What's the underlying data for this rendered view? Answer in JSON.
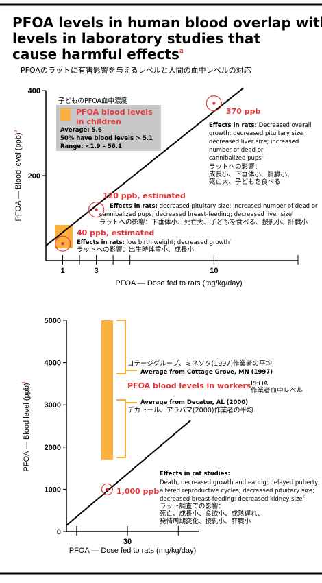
{
  "title": [
    "PFOA levels in human blood overlap with",
    "levels in laboratory studies that",
    "cause harmful effects"
  ],
  "title_note": "a",
  "subtitle": "PFOAのラットに有害影響を与えるレベルと人間の血中レベルの対応",
  "chart_data": [
    {
      "type": "line",
      "xlabel": "PFOA — Dose fed to rats (mg/kg/day)",
      "ylabel": "PFOA — Blood level (ppb)",
      "ylabel_note": "b",
      "xlim": [
        0,
        15
      ],
      "ylim": [
        0,
        400
      ],
      "xticks": [
        1,
        3,
        10
      ],
      "minor_xticks": [
        2,
        4,
        5,
        15
      ],
      "yticks": [
        200,
        400
      ],
      "trend": {
        "x": [
          0,
          11.75
        ],
        "values": [
          35,
          406
        ],
        "color": "#000000"
      },
      "highlight_color": "#fbb040",
      "children": {
        "japanese": "子どものPFOA血中濃度",
        "heading": [
          "PFOA blood levels",
          "in children"
        ],
        "stats": [
          "Average: 5.6",
          "50% have blood levels > 5.1",
          "Range: <1.9 – 56.1"
        ]
      },
      "points": [
        {
          "x": 1,
          "value": 40,
          "label": "40 ppb, estimated",
          "color": "#e0383e",
          "effects_heading": "Effects in rats:",
          "effects": [
            "low birth weight; decreased growth"
          ],
          "note": "c",
          "japanese": [
            "ラットへの影響：出生時体重小、成長小"
          ]
        },
        {
          "x": 3,
          "value": 120,
          "label": "120 ppb, estimated",
          "color": "#e0383e",
          "effects_heading": "Effects in rats:",
          "effects": [
            "decreased pituitary size; increased number of dead or",
            "cannibalized pups; decreased breast-feeding; decreased liver size"
          ],
          "note": "c",
          "japanese": [
            "ラットへの影響：下垂体小、死亡大、子どもを食べる、授乳小、肝臓小"
          ]
        },
        {
          "x": 10,
          "value": 370,
          "label": "370 ppb",
          "color": "#e0383e",
          "effects_heading": "Effects in rats:",
          "effects": [
            "Decreased overall",
            "growth; decreased pituitary size;",
            "decreased liver size; increased",
            "number of dead or",
            "cannibalized pups"
          ],
          "note": "c",
          "japanese": [
            "ラットへの影響：",
            "成長小、下垂体小、肝臓小、",
            "死亡大、子どもを食べる"
          ]
        }
      ]
    },
    {
      "type": "line",
      "xlabel": "PFOA — Dose fed to rats (mg/kg/day)",
      "ylabel": "PFOA — Blood level (ppb)",
      "ylabel_note": "b",
      "xlim": [
        0,
        65
      ],
      "ylim": [
        0,
        5000
      ],
      "xticks": [
        30
      ],
      "minor_xticks": [
        5,
        55
      ],
      "yticks": [
        0,
        1000,
        2000,
        3000,
        4000,
        5000
      ],
      "trend": {
        "x": [
          0,
          61
        ],
        "values": [
          146,
          2630
        ],
        "color": "#000000"
      },
      "workers": {
        "range": [
          1700,
          5000
        ],
        "color": "#fbb040",
        "label": "PFOA blood levels in workers",
        "japanese": [
          "PFOA",
          "作業者血中レベル"
        ],
        "averages": [
          {
            "label": "Average from Cottage Grove, MN (1997)",
            "japanese": "コテージグルーブ、ミネソタ(1997)作業者の平均"
          },
          {
            "label": "Average from Decatur, AL (2000)",
            "japanese": "デカトール、アラバマ(2000)作業者の平均"
          }
        ]
      },
      "points": [
        {
          "x": 20,
          "value": 1000,
          "label": "1,000 ppb",
          "color": "#e0383e",
          "effects_heading": "Effects in rat studies:",
          "effects": [
            "Death, decreased growth and eating; delayed puberty;",
            "altered reproductive cycles; decreased pituitary size;",
            "decreased breast-feeding; decreased kidney size"
          ],
          "note": "c",
          "japanese": [
            "ラット調査での影響：",
            "死亡、成長小、食欲小、成熟遅れ、",
            "発情周期変化、授乳小、肝臓小"
          ]
        }
      ]
    }
  ]
}
